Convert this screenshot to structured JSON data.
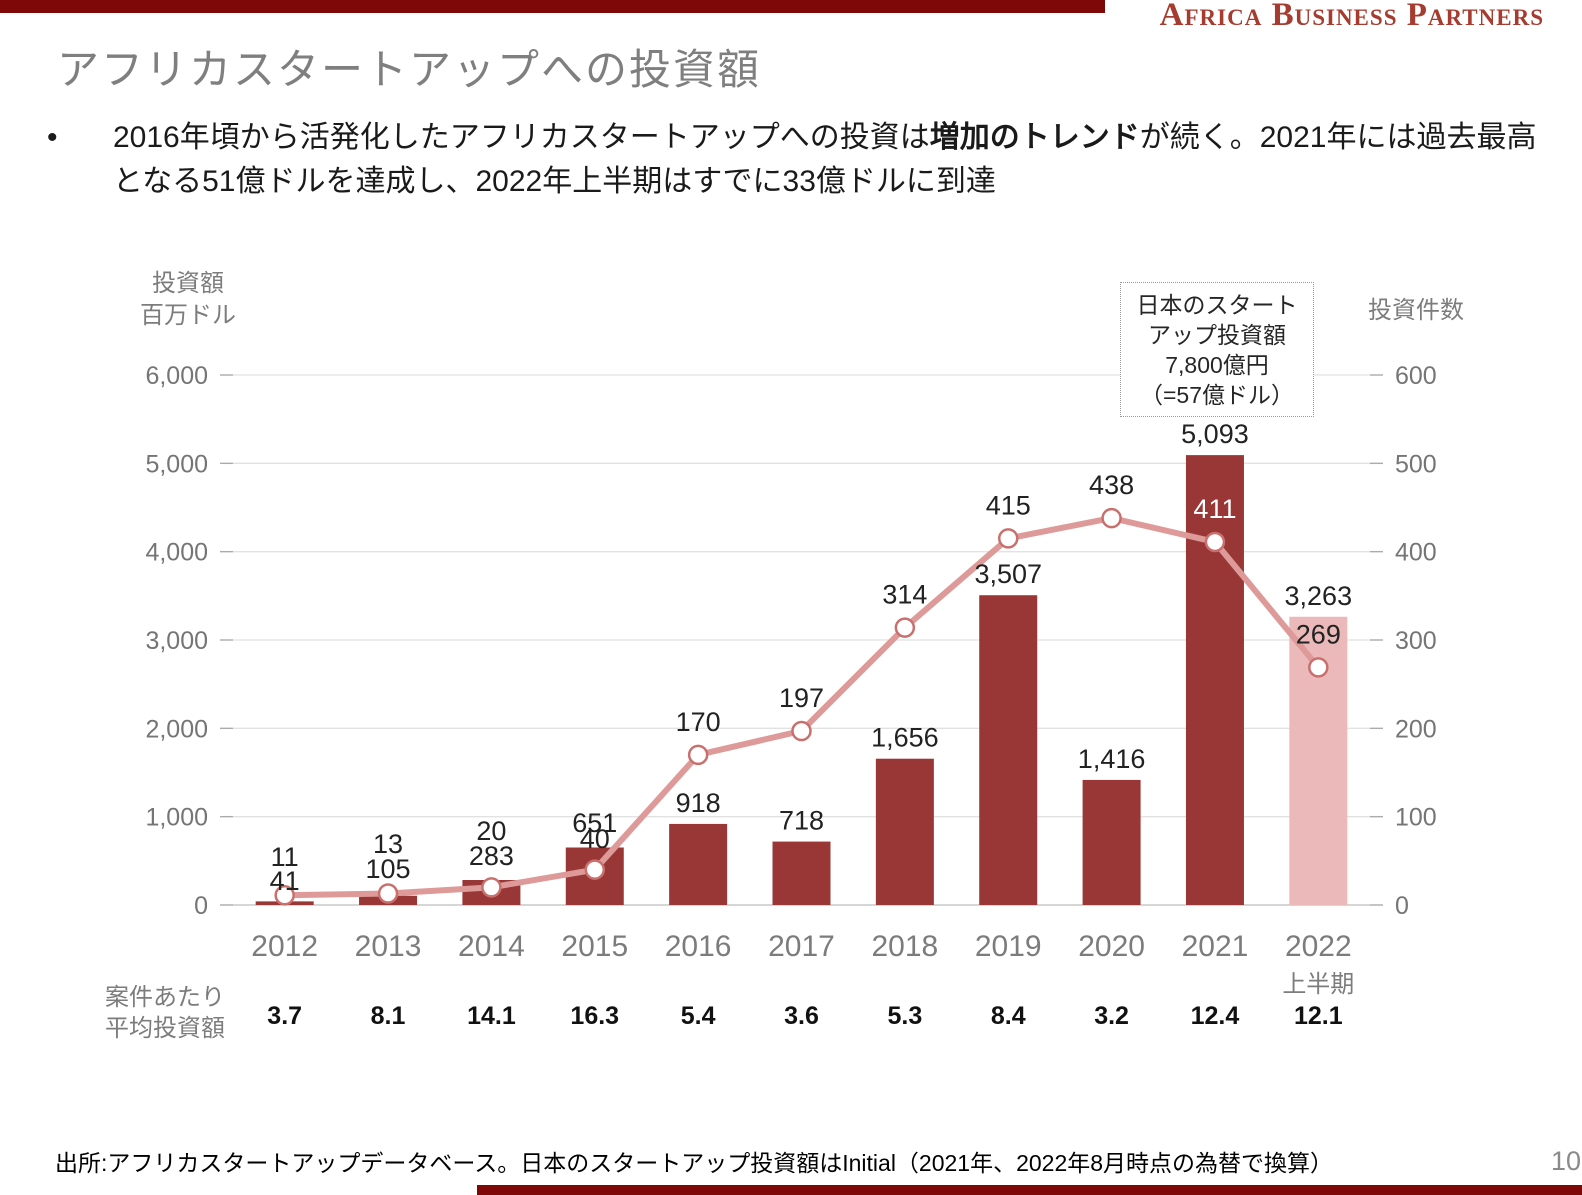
{
  "page": {
    "logo": "Africa Business Partners",
    "title": "アフリカスタートアップへの投資額",
    "bullet": {
      "marker": "•",
      "pre": "2016年頃から活発化したアフリカスタートアップへの投資は",
      "bold": "増加のトレンド",
      "post": "が続く。2021年には過去最高となる51億ドルを達成し、2022年上半期はすでに33億ドルに到達"
    },
    "source": "出所:アフリカスタートアップデータベース。日本のスタートアップ投資額はInitial（2021年、2022年8月時点の為替で換算）",
    "page_number": "10"
  },
  "annotation": {
    "line1": "日本のスタート",
    "line2": "アップ投資額",
    "line3": "7,800億円",
    "line4": "（=57億ドル）"
  },
  "chart_data": {
    "type": "bar",
    "title": "アフリカスタートアップへの投資額",
    "categories": [
      "2012",
      "2013",
      "2014",
      "2015",
      "2016",
      "2017",
      "2018",
      "2019",
      "2020",
      "2021",
      "2022"
    ],
    "category_note": {
      "index": 10,
      "label": "上半期"
    },
    "highlight_index": 10,
    "series": [
      {
        "name": "投資額（百万ドル）",
        "type": "bar",
        "values": [
          41,
          105,
          283,
          651,
          918,
          718,
          1656,
          3507,
          1416,
          5093,
          3263
        ],
        "labels": [
          "41",
          "105",
          "283",
          "651",
          "918",
          "718",
          "1,656",
          "3,507",
          "1,416",
          "5,093",
          "3,263"
        ]
      },
      {
        "name": "投資件数",
        "type": "line",
        "values": [
          11,
          13,
          20,
          40,
          170,
          197,
          314,
          415,
          438,
          411,
          269
        ],
        "labels": [
          "11",
          "13",
          "20",
          "40",
          "170",
          "197",
          "314",
          "415",
          "438",
          "411",
          "269"
        ]
      }
    ],
    "avg_row": {
      "label1": "案件あたり",
      "label2": "平均投資額",
      "values": [
        "3.7",
        "8.1",
        "14.1",
        "16.3",
        "5.4",
        "3.6",
        "5.3",
        "8.4",
        "3.2",
        "12.4",
        "12.1"
      ]
    },
    "left_axis": {
      "title1": "投資額",
      "title2": "百万ドル",
      "max": 6000,
      "ticks": [
        "0",
        "1,000",
        "2,000",
        "3,000",
        "4,000",
        "5,000",
        "6,000"
      ]
    },
    "right_axis": {
      "title": "投資件数",
      "max": 600,
      "ticks": [
        "0",
        "100",
        "200",
        "300",
        "400",
        "500",
        "600"
      ]
    },
    "legend": "none",
    "grid": "horizontal",
    "colors": {
      "bar": "#993737",
      "bar_highlight": "#EBB9B9",
      "line": "#DD9A99",
      "marker_fill": "#FFFFFF",
      "marker_stroke": "#C9706E",
      "grid": "#E2E2E2",
      "baseline": "#C9C9C9",
      "accent_bar": "#7E0708",
      "logo": "#A63B2F"
    }
  }
}
